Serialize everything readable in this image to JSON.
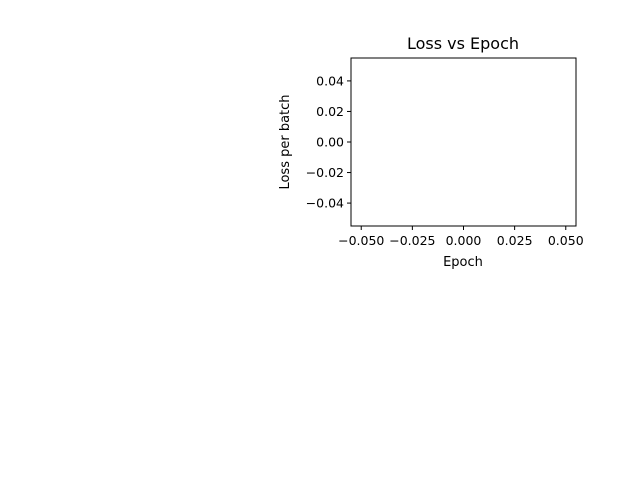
{
  "chart_data": {
    "type": "line",
    "title": "Loss vs Epoch",
    "xlabel": "Epoch",
    "ylabel": "Loss per batch",
    "x": [],
    "series": [
      {
        "values": []
      }
    ],
    "xlim": [
      -0.055,
      0.055
    ],
    "ylim": [
      -0.055,
      0.055
    ],
    "xticks": [
      -0.05,
      -0.025,
      0.0,
      0.025,
      0.05
    ],
    "xtick_labels": [
      "−0.050",
      "−0.025",
      "0.000",
      "0.025",
      "0.050"
    ],
    "yticks": [
      0.04,
      0.02,
      0.0,
      -0.02,
      -0.04
    ],
    "ytick_labels": [
      "0.04",
      "0.02",
      "0.00",
      "−0.02",
      "−0.04"
    ],
    "grid": false,
    "colors": {
      "axes": "#000000",
      "background": "#ffffff",
      "line": "#1f77b4"
    }
  }
}
